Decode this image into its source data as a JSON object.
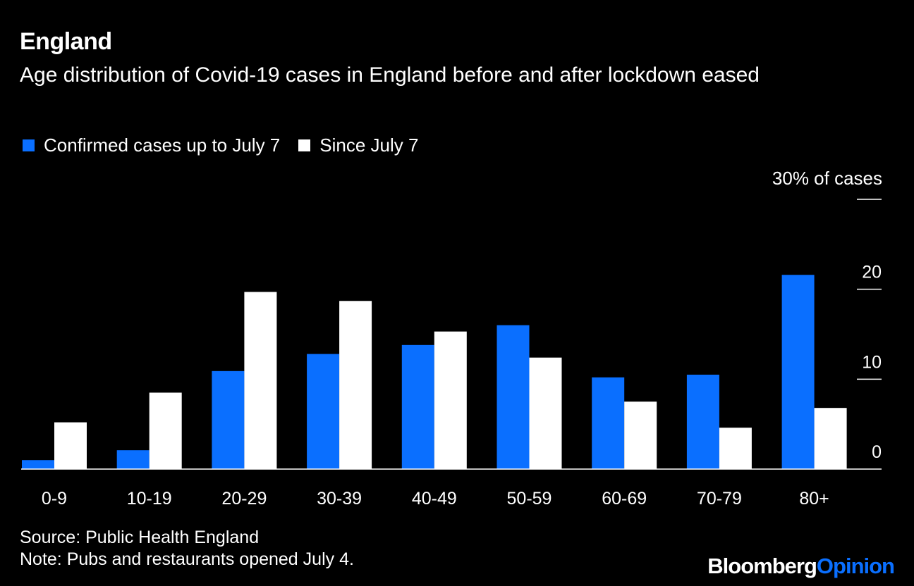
{
  "title": "England",
  "subtitle": "Age distribution of Covid-19 cases in England before and after lockdown eased",
  "unit_label": "30% of cases",
  "source": "Source: Public Health England",
  "note": "Note: Pubs and restaurants opened July 4.",
  "brand": {
    "part1": "Bloomberg",
    "part2": "Opinion"
  },
  "colors": {
    "series1": "#0a6fff",
    "series2": "#ffffff",
    "background": "#000000"
  },
  "chart_data": {
    "type": "bar",
    "categories": [
      "0-9",
      "10-19",
      "20-29",
      "30-39",
      "40-49",
      "50-59",
      "60-69",
      "70-79",
      "80+"
    ],
    "series": [
      {
        "name": "Confirmed cases up to July 7",
        "values": [
          1.0,
          2.1,
          10.9,
          12.8,
          13.8,
          16.0,
          10.2,
          10.5,
          21.6
        ]
      },
      {
        "name": "Since July 7",
        "values": [
          5.2,
          8.5,
          19.7,
          18.7,
          15.3,
          12.4,
          7.5,
          4.6,
          6.8
        ]
      }
    ],
    "yticks": [
      "0",
      "10",
      "20"
    ],
    "ylim": [
      0,
      30
    ],
    "axis_side": "right",
    "legend_position": "top-left",
    "grid": false
  }
}
